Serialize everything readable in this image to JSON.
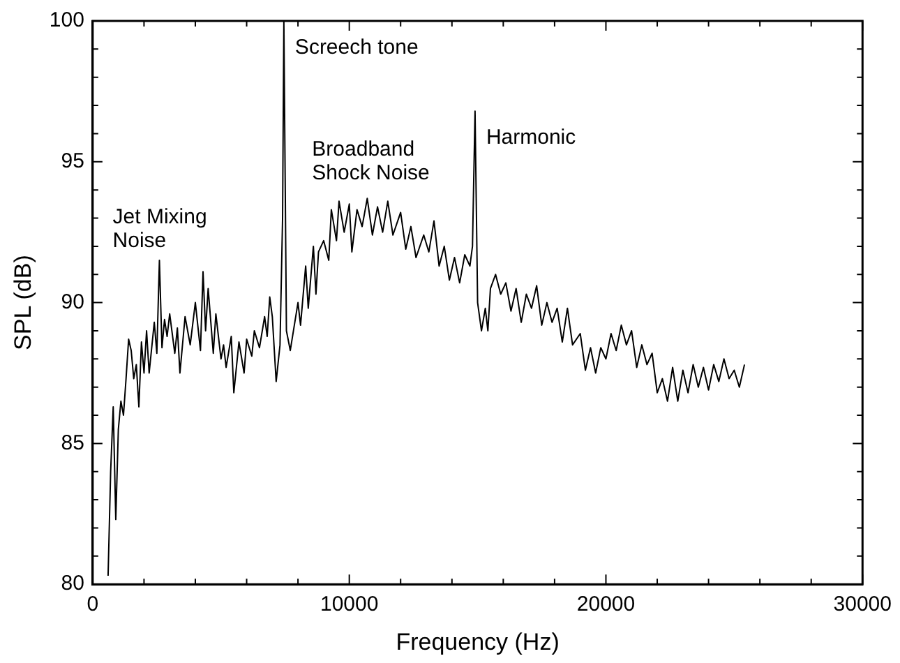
{
  "chart_data": {
    "type": "line",
    "xlabel": "Frequency (Hz)",
    "ylabel": "SPL (dB)",
    "xlim": [
      0,
      30000
    ],
    "ylim": [
      80,
      100
    ],
    "xticks": [
      0,
      {
        "value": 2000,
        "label": null
      },
      {
        "value": 4000,
        "label": null
      },
      {
        "value": 6000,
        "label": null
      },
      {
        "value": 8000,
        "label": null
      },
      10000,
      {
        "value": 12000,
        "label": null
      },
      {
        "value": 14000,
        "label": null
      },
      {
        "value": 16000,
        "label": null
      },
      {
        "value": 18000,
        "label": null
      },
      20000,
      {
        "value": 22000,
        "label": null
      },
      {
        "value": 24000,
        "label": null
      },
      {
        "value": 26000,
        "label": null
      },
      {
        "value": 28000,
        "label": null
      },
      30000
    ],
    "yticks": [
      80,
      {
        "value": 81,
        "label": null
      },
      {
        "value": 82,
        "label": null
      },
      {
        "value": 83,
        "label": null
      },
      {
        "value": 84,
        "label": null
      },
      85,
      {
        "value": 86,
        "label": null
      },
      {
        "value": 87,
        "label": null
      },
      {
        "value": 88,
        "label": null
      },
      {
        "value": 89,
        "label": null
      },
      90,
      {
        "value": 91,
        "label": null
      },
      {
        "value": 92,
        "label": null
      },
      {
        "value": 93,
        "label": null
      },
      {
        "value": 94,
        "label": null
      },
      95,
      {
        "value": 96,
        "label": null
      },
      {
        "value": 97,
        "label": null
      },
      {
        "value": 98,
        "label": null
      },
      {
        "value": 99,
        "label": null
      },
      100
    ],
    "grid": false,
    "legend": false,
    "marker": "none",
    "line_style": "solid",
    "series": [
      {
        "color": "#000000",
        "x": [
          600,
          700,
          800,
          900,
          1000,
          1100,
          1200,
          1300,
          1400,
          1500,
          1600,
          1700,
          1800,
          1900,
          2000,
          2100,
          2200,
          2400,
          2500,
          2600,
          2700,
          2800,
          2900,
          3000,
          3200,
          3300,
          3400,
          3600,
          3800,
          4000,
          4200,
          4300,
          4400,
          4500,
          4700,
          4800,
          5000,
          5100,
          5200,
          5400,
          5500,
          5700,
          5900,
          6000,
          6200,
          6300,
          6500,
          6700,
          6800,
          6900,
          7000,
          7150,
          7300,
          7400,
          7450,
          7550,
          7700,
          8000,
          8100,
          8300,
          8400,
          8600,
          8700,
          8800,
          9000,
          9200,
          9300,
          9500,
          9600,
          9800,
          10000,
          10100,
          10300,
          10500,
          10700,
          10900,
          11100,
          11300,
          11500,
          11700,
          12000,
          12200,
          12400,
          12600,
          12900,
          13100,
          13300,
          13500,
          13700,
          13900,
          14100,
          14300,
          14500,
          14700,
          14800,
          14900,
          15000,
          15150,
          15300,
          15400,
          15500,
          15700,
          15900,
          16100,
          16300,
          16500,
          16700,
          16900,
          17100,
          17300,
          17500,
          17700,
          17900,
          18100,
          18300,
          18500,
          18700,
          19000,
          19200,
          19400,
          19600,
          19800,
          20000,
          20200,
          20400,
          20600,
          20800,
          21000,
          21200,
          21400,
          21600,
          21800,
          22000,
          22200,
          22400,
          22600,
          22800,
          23000,
          23200,
          23400,
          23600,
          23800,
          24000,
          24200,
          24400,
          24600,
          24800,
          25000,
          25200,
          25400
        ],
        "values": [
          80.3,
          84,
          86.3,
          82.3,
          85.5,
          86.5,
          86,
          87.3,
          88.7,
          88.3,
          87.3,
          87.8,
          86.3,
          88.6,
          87.5,
          89,
          87.5,
          89.3,
          88.2,
          91.5,
          88.4,
          89.4,
          88.8,
          89.6,
          88.2,
          89.1,
          87.5,
          89.5,
          88.5,
          90,
          88.3,
          91.1,
          89,
          90.5,
          88.2,
          89.6,
          88,
          88.5,
          87.7,
          88.8,
          86.8,
          88.6,
          87.5,
          88.7,
          88.1,
          89,
          88.4,
          89.5,
          88.8,
          90.2,
          89.5,
          87.2,
          88.5,
          93,
          100,
          89,
          88.3,
          90,
          89.2,
          91.3,
          89.8,
          92,
          90.3,
          91.8,
          92.2,
          91.5,
          93.3,
          92.2,
          93.6,
          92.5,
          93.5,
          91.8,
          93.3,
          92.7,
          93.7,
          92.4,
          93.4,
          92.5,
          93.6,
          92.4,
          93.2,
          91.9,
          92.7,
          91.6,
          92.4,
          91.8,
          92.9,
          91.3,
          92,
          90.8,
          91.6,
          90.7,
          91.7,
          91.3,
          92,
          96.8,
          90,
          89,
          89.8,
          89,
          90.5,
          91,
          90.3,
          90.7,
          89.7,
          90.5,
          89.3,
          90.3,
          89.8,
          90.6,
          89.2,
          90,
          89.3,
          89.8,
          88.6,
          89.8,
          88.5,
          88.9,
          87.6,
          88.4,
          87.5,
          88.4,
          88,
          88.9,
          88.3,
          89.2,
          88.5,
          89,
          87.7,
          88.5,
          87.8,
          88.2,
          86.8,
          87.3,
          86.5,
          87.7,
          86.5,
          87.6,
          86.8,
          87.8,
          87,
          87.7,
          86.9,
          87.8,
          87.2,
          88,
          87.3,
          87.6,
          87,
          87.8
        ]
      }
    ],
    "annotations": [
      "Jet Mixing\nNoise",
      {
        "text": "Screech tone",
        "x": 7450,
        "y": 100
      },
      "Broadband\nShock Noise",
      {
        "text": "Harmonic",
        "x": 14900,
        "y": 96.8
      }
    ]
  }
}
